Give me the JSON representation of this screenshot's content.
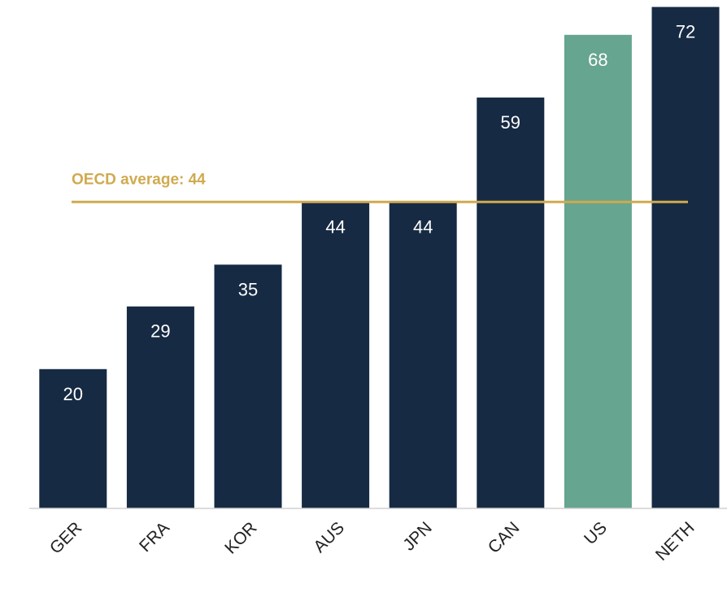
{
  "chart_data": {
    "type": "bar",
    "categories": [
      "GER",
      "FRA",
      "KOR",
      "AUS",
      "JPN",
      "CAN",
      "US",
      "NETH"
    ],
    "values": [
      20,
      29,
      35,
      44,
      44,
      59,
      68,
      72
    ],
    "colors": [
      "#162a43",
      "#162a43",
      "#162a43",
      "#162a43",
      "#162a43",
      "#162a43",
      "#66a590",
      "#162a43"
    ],
    "ylim": [
      0,
      73
    ],
    "reference_line": {
      "value": 44,
      "label": "OECD average: 44",
      "color": "#d0aa4f"
    }
  }
}
